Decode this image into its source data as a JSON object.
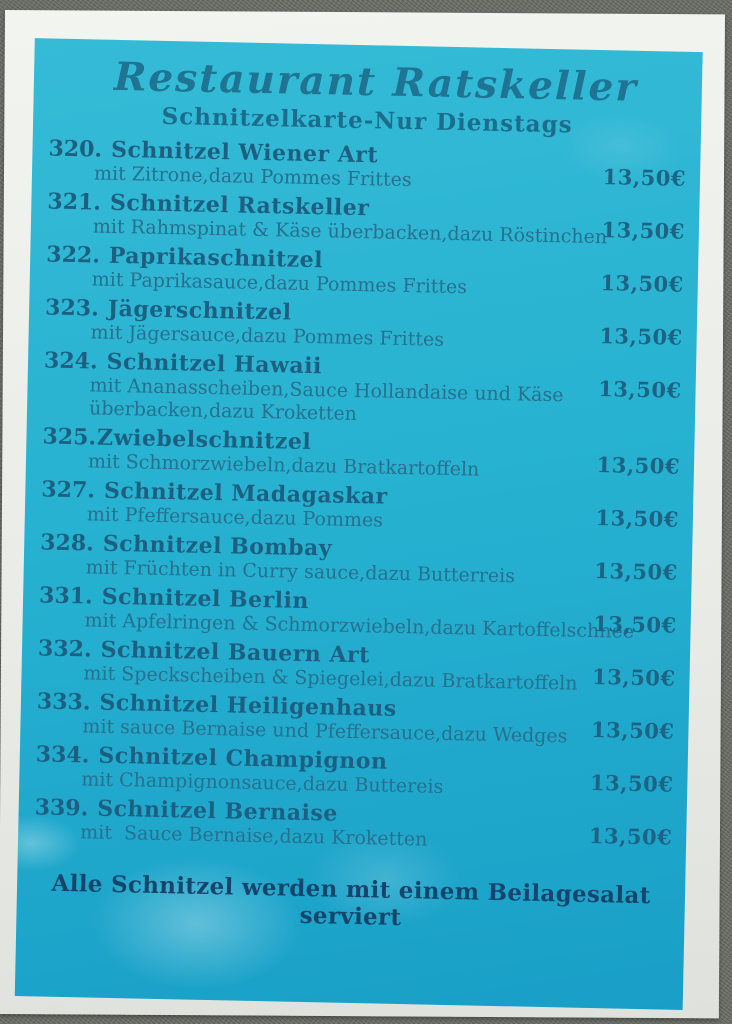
{
  "header": {
    "title": "Restaurant Ratskeller",
    "subtitle": "Schnitzelkarte-Nur Dienstags"
  },
  "menu": {
    "items": [
      {
        "number": "320.",
        "name": "Schnitzel Wiener Art",
        "description": "mit Zitrone,dazu Pommes Frittes",
        "price": "13,50€"
      },
      {
        "number": "321.",
        "name": "Schnitzel Ratskeller",
        "description": "mit Rahmspinat & Käse überbacken,dazu Röstinchen",
        "price": "13,50€"
      },
      {
        "number": "322.",
        "name": "Paprikaschnitzel",
        "description": "mit Paprikasauce,dazu Pommes Frittes",
        "price": "13,50€"
      },
      {
        "number": "323.",
        "name": "Jägerschnitzel",
        "description": "mit Jägersauce,dazu Pommes Frittes",
        "price": "13,50€"
      },
      {
        "number": "324.",
        "name": "Schnitzel Hawaii",
        "description": "mit Ananasscheiben,Sauce Hollandaise und Käse\nüberbacken,dazu Kroketten",
        "price": "13,50€"
      },
      {
        "number": "325.",
        "name": "Zwiebelschnitzel",
        "description": "mit Schmorzwiebeln,dazu Bratkartoffeln",
        "price": "13,50€",
        "tight": true
      },
      {
        "number": "327.",
        "name": "Schnitzel Madagaskar",
        "description": "mit Pfeffersauce,dazu Pommes",
        "price": "13,50€"
      },
      {
        "number": "328.",
        "name": "Schnitzel Bombay",
        "description": "mit Früchten in Curry sauce,dazu Butterreis",
        "price": "13,50€"
      },
      {
        "number": "331.",
        "name": "Schnitzel Berlin",
        "description": "mit Apfelringen & Schmorzwiebeln,dazu Kartoffelschnee",
        "price": "13,50€"
      },
      {
        "number": "332.",
        "name": "Schnitzel Bauern Art",
        "description": "mit Speckscheiben & Spiegelei,dazu Bratkartoffeln",
        "price": "13,50€"
      },
      {
        "number": "333.",
        "name": "Schnitzel Heiligenhaus",
        "description": "mit sauce Bernaise und Pfeffersauce,dazu Wedges",
        "price": "13,50€"
      },
      {
        "number": "334.",
        "name": "Schnitzel Champignon",
        "description": "mit Champignonsauce,dazu Buttereis",
        "price": "13,50€"
      },
      {
        "number": "339.",
        "name": "Schnitzel Bernaise",
        "description": "mit  Sauce Bernaise,dazu Kroketten",
        "price": "13,50€"
      }
    ]
  },
  "footer": {
    "note": "Alle Schnitzel werden mit einem Beilagesalat serviert"
  },
  "colors": {
    "card_cyan": "#27b2d1",
    "ink_teal": "#1d5f81",
    "footer_ink": "#15456b",
    "background_gray": "#6e716a",
    "sheet_white": "#edefe9"
  }
}
